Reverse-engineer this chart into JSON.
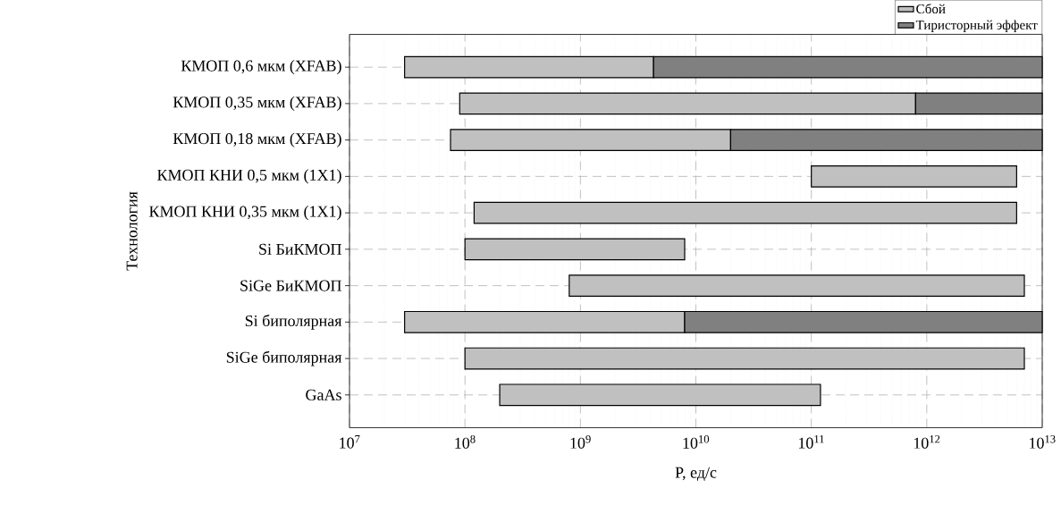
{
  "chart_data": {
    "type": "bar",
    "orientation": "horizontal",
    "stacked": true,
    "log": "x",
    "grid": true,
    "legend": "top right",
    "xlabel": "P, ед/с",
    "ylabel": "Технология",
    "categories": [
      "КМОП 0,6 мкм (XFAB)",
      "КМОП 0,35 мкм (XFAB)",
      "КМОП 0,18 мкм (XFAB)",
      "КМОП КНИ 0,5 мкм (1Х1)",
      "КМОП КНИ 0,35 мкм (1Х1)",
      "Si БиКМОП",
      "SiGe БиКМОП",
      "Si биполярная",
      "SiGe биполярная",
      "GaAs"
    ],
    "xlim": [
      10000000.0,
      10000000000000.0
    ],
    "xticks": [
      {
        "value": 10000000.0,
        "label": "10$^{7}$"
      },
      {
        "value": 100000000.0,
        "label": "10$^{8}$"
      },
      {
        "value": 1000000000.0,
        "label": "10$^{9}$"
      },
      {
        "value": 10000000000.0,
        "label": "10$^{10}$"
      },
      {
        "value": 100000000000.0,
        "label": "10$^{11}$"
      },
      {
        "value": 1000000000000.0,
        "label": "10$^{12}$"
      },
      {
        "value": 10000000000000.0,
        "label": "10$^{13}$"
      }
    ],
    "series": [
      {
        "name": "Сбой",
        "color": "#c0c0c0",
        "base": [
          30000000.0,
          90000000.0,
          75000000.0,
          100000000000.0,
          120000000.0,
          100000000.0,
          800000000.0,
          30000000.0,
          100000000.0,
          200000000.0
        ],
        "values": [
          4270000000.0,
          799910000000.0,
          19925000000.0,
          5900000000000.0,
          5999880000000.0,
          7900000000.0,
          6999200000000.0,
          7970000000.0,
          6999900000000.0,
          119800000000.0
        ]
      },
      {
        "name": "Тиристорный эффект",
        "color": "#808080",
        "values": [
          9995700000000.0,
          9200000000000.0,
          9980000000000.0,
          null,
          null,
          null,
          null,
          9992000000000.0,
          null,
          null
        ]
      }
    ]
  }
}
